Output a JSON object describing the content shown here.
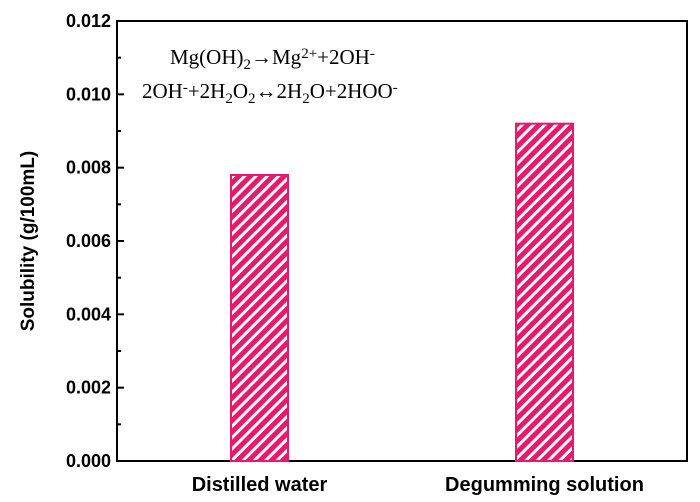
{
  "chart_data": {
    "type": "bar",
    "categories": [
      "Distilled water",
      "Degumming solution"
    ],
    "values": [
      0.0078,
      0.0092
    ],
    "title": "",
    "xlabel": "",
    "ylabel": "Solubility (g/100mL)",
    "ylim": [
      0,
      0.012
    ],
    "yticks": [
      "0.000",
      "0.002",
      "0.004",
      "0.006",
      "0.008",
      "0.010",
      "0.012"
    ],
    "bar_color": "#e8186b",
    "hatch_color": "#ffffff",
    "annotations": [
      "Mg(OH)₂→Mg²⁺+2OH⁻",
      "2OH⁻+2H₂O₂↔2H₂O+2HOO⁻"
    ]
  }
}
